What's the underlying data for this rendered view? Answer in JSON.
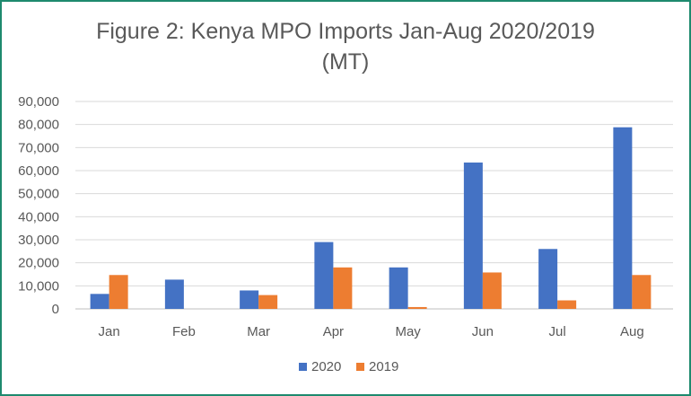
{
  "chart_data": {
    "type": "bar",
    "title_line1": "Figure 2: Kenya MPO Imports Jan-Aug 2020/2019",
    "title_line2": "(MT)",
    "xlabel": "",
    "ylabel": "",
    "categories": [
      "Jan",
      "Feb",
      "Mar",
      "Apr",
      "May",
      "Jun",
      "Jul",
      "Aug"
    ],
    "series": [
      {
        "name": "2020",
        "color": "#4472c4",
        "values": [
          6500,
          12700,
          8000,
          29000,
          18000,
          63500,
          26000,
          78800
        ]
      },
      {
        "name": "2019",
        "color": "#ed7d31",
        "values": [
          14700,
          0,
          6000,
          18000,
          800,
          15800,
          3700,
          14700
        ]
      }
    ],
    "ylim": [
      0,
      90000
    ],
    "yticks": [
      "0",
      "10,000",
      "20,000",
      "30,000",
      "40,000",
      "50,000",
      "60,000",
      "70,000",
      "80,000",
      "90,000"
    ],
    "grid": true,
    "legend_position": "bottom"
  }
}
